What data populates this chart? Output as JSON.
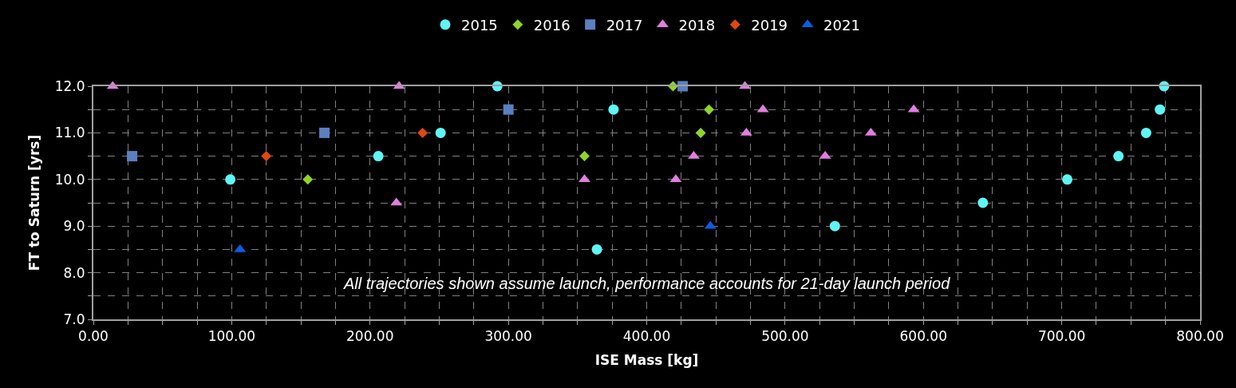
{
  "chart_data": {
    "type": "scatter",
    "xlabel": "ISE Mass [kg]",
    "ylabel": "FT to Saturn [yrs]",
    "annotations": [
      "All trajectories shown assume launch, performance accounts for 21-day launch period"
    ],
    "xlim": [
      0,
      800
    ],
    "ylim": [
      7,
      12
    ],
    "xticks": [
      {
        "value": 0,
        "label": "0.00"
      },
      {
        "value": 25,
        "label": null
      },
      {
        "value": 50,
        "label": null
      },
      {
        "value": 75,
        "label": null
      },
      {
        "value": 100,
        "label": "100.00"
      },
      {
        "value": 125,
        "label": null
      },
      {
        "value": 150,
        "label": null
      },
      {
        "value": 175,
        "label": null
      },
      {
        "value": 200,
        "label": "200.00"
      },
      {
        "value": 225,
        "label": null
      },
      {
        "value": 250,
        "label": null
      },
      {
        "value": 275,
        "label": null
      },
      {
        "value": 300,
        "label": "300.00"
      },
      {
        "value": 325,
        "label": null
      },
      {
        "value": 350,
        "label": null
      },
      {
        "value": 375,
        "label": null
      },
      {
        "value": 400,
        "label": "400.00"
      },
      {
        "value": 425,
        "label": null
      },
      {
        "value": 450,
        "label": null
      },
      {
        "value": 475,
        "label": null
      },
      {
        "value": 500,
        "label": "500.00"
      },
      {
        "value": 525,
        "label": null
      },
      {
        "value": 550,
        "label": null
      },
      {
        "value": 575,
        "label": null
      },
      {
        "value": 600,
        "label": "600.00"
      },
      {
        "value": 625,
        "label": null
      },
      {
        "value": 650,
        "label": null
      },
      {
        "value": 675,
        "label": null
      },
      {
        "value": 700,
        "label": "700.00"
      },
      {
        "value": 725,
        "label": null
      },
      {
        "value": 750,
        "label": null
      },
      {
        "value": 775,
        "label": null
      },
      {
        "value": 800,
        "label": "800.00"
      }
    ],
    "yticks": [
      {
        "value": 7,
        "label": "7.0"
      },
      {
        "value": 7.5,
        "label": null
      },
      {
        "value": 8,
        "label": "8.0"
      },
      {
        "value": 8.5,
        "label": null
      },
      {
        "value": 9,
        "label": "9.0"
      },
      {
        "value": 9.5,
        "label": null
      },
      {
        "value": 10,
        "label": "10.0"
      },
      {
        "value": 10.5,
        "label": null
      },
      {
        "value": 11,
        "label": "11.0"
      },
      {
        "value": 11.5,
        "label": null
      },
      {
        "value": 12,
        "label": "12.0"
      }
    ],
    "grid": true,
    "legend": "top",
    "series": [
      {
        "name": "2015",
        "color": "#5ff5f5",
        "marker": "circle",
        "x": [
          99,
          206,
          251,
          292,
          376,
          364,
          536,
          643,
          704,
          741,
          761,
          771,
          774
        ],
        "values": [
          10.0,
          10.5,
          11.0,
          12.0,
          11.5,
          8.5,
          9.0,
          9.5,
          10.0,
          10.5,
          11.0,
          11.5,
          12.0
        ]
      },
      {
        "name": "2016",
        "color": "#8fd42a",
        "marker": "diamond",
        "x": [
          155,
          355,
          419,
          439,
          445
        ],
        "values": [
          10.0,
          10.5,
          12.0,
          11.0,
          11.5
        ]
      },
      {
        "name": "2017",
        "color": "#5b7fc0",
        "marker": "square",
        "x": [
          28,
          167,
          300,
          426
        ],
        "values": [
          10.5,
          11.0,
          11.5,
          12.0
        ]
      },
      {
        "name": "2018",
        "color": "#e07ee0",
        "marker": "triangle",
        "x": [
          14,
          219,
          221,
          355,
          421,
          434,
          471,
          472,
          484,
          529,
          562,
          593
        ],
        "values": [
          12.0,
          9.5,
          12.0,
          10.0,
          10.0,
          10.5,
          12.0,
          11.0,
          11.5,
          10.5,
          11.0,
          11.5
        ]
      },
      {
        "name": "2019",
        "color": "#e0480f",
        "marker": "diamond",
        "x": [
          125,
          238
        ],
        "values": [
          10.5,
          11.0
        ]
      },
      {
        "name": "2021",
        "color": "#0a5ee0",
        "marker": "triangle",
        "x": [
          106,
          446
        ],
        "values": [
          8.5,
          9.0
        ]
      }
    ]
  }
}
